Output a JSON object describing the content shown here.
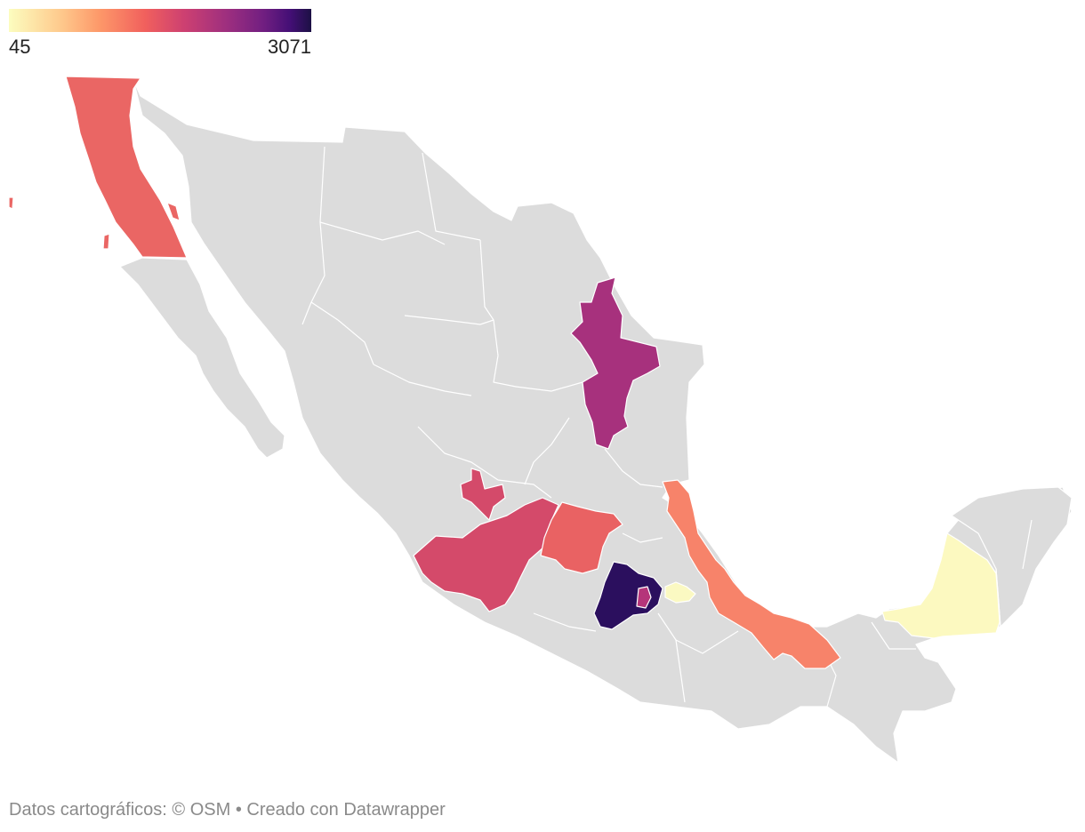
{
  "legend": {
    "min_label": "45",
    "max_label": "3071",
    "min_value": 45,
    "max_value": 3071,
    "colors": [
      "#fcfdbf",
      "#feca8d",
      "#fd9869",
      "#f1605d",
      "#cd4071",
      "#9e2f7f",
      "#721f81",
      "#440f76",
      "#1c1044"
    ]
  },
  "map": {
    "base_color": "#dcdcdc",
    "border_color": "#ffffff",
    "highlighted_regions": [
      {
        "name": "Baja California",
        "color": "#ea6664"
      },
      {
        "name": "Nuevo León",
        "color": "#a7317d"
      },
      {
        "name": "Aguascalientes",
        "color": "#d44a6a"
      },
      {
        "name": "Jalisco",
        "color": "#d44a6a"
      },
      {
        "name": "Guanajuato",
        "color": "#e96263"
      },
      {
        "name": "Estado de México",
        "color": "#2b0f5e"
      },
      {
        "name": "Ciudad de México",
        "color": "#b5357a"
      },
      {
        "name": "Tlaxcala",
        "color": "#fbf9c2"
      },
      {
        "name": "Veracruz",
        "color": "#f7836a"
      },
      {
        "name": "Campeche",
        "color": "#fcf9c0"
      }
    ]
  },
  "footer": {
    "source": "Datos cartográficos: © OSM",
    "credit": " • Creado con Datawrapper"
  }
}
